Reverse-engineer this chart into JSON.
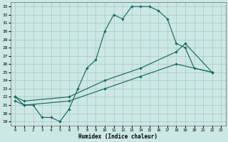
{
  "xlabel": "Humidex (Indice chaleur)",
  "bg_color": "#cce8e4",
  "grid_color": "#aacccc",
  "line_color": "#1a6b5e",
  "xlim": [
    -0.5,
    23.5
  ],
  "ylim": [
    18.5,
    33.5
  ],
  "xticks": [
    0,
    1,
    2,
    3,
    4,
    5,
    6,
    7,
    8,
    9,
    10,
    11,
    12,
    13,
    14,
    15,
    16,
    17,
    18,
    19,
    20,
    21,
    22,
    23
  ],
  "yticks": [
    19,
    20,
    21,
    22,
    23,
    24,
    25,
    26,
    27,
    28,
    29,
    30,
    31,
    32,
    33
  ],
  "line1_x": [
    0,
    1,
    2,
    3,
    4,
    5,
    6,
    7,
    8,
    9,
    10,
    11,
    12,
    13,
    14,
    15,
    16,
    17,
    18,
    19,
    20,
    22
  ],
  "line1_y": [
    22,
    21,
    21,
    19.5,
    19.5,
    19,
    20.5,
    23,
    25.5,
    26.5,
    30,
    32,
    31.5,
    33,
    33,
    33,
    32.5,
    31.5,
    28.5,
    28,
    25.5,
    25
  ],
  "line2_x": [
    0,
    1,
    6,
    10,
    14,
    18,
    19,
    22
  ],
  "line2_y": [
    22,
    21.5,
    22,
    24,
    25.5,
    27.5,
    28.5,
    25
  ],
  "line3_x": [
    0,
    1,
    6,
    10,
    14,
    18,
    22
  ],
  "line3_y": [
    21.5,
    21,
    21.5,
    23,
    24.5,
    26,
    25
  ]
}
